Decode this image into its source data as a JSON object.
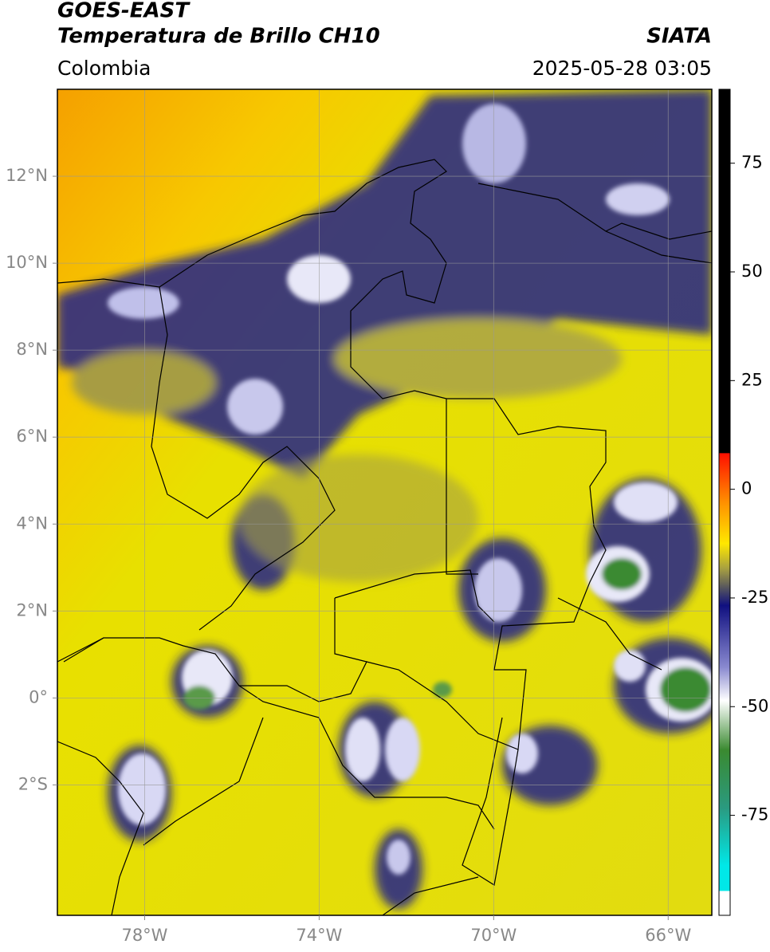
{
  "header": {
    "satellite": "GOES-EAST",
    "product": "Temperatura de Brillo CH10",
    "agency": "SIATA",
    "region": "Colombia",
    "datetime": "2025-05-28 03:05"
  },
  "map": {
    "xlim": [
      -80,
      -65
    ],
    "ylim": [
      -5,
      14
    ],
    "xticks": [
      {
        "value": -78,
        "label": "78°W"
      },
      {
        "value": -74,
        "label": "74°W"
      },
      {
        "value": -70,
        "label": "70°W"
      },
      {
        "value": -66,
        "label": "66°W"
      }
    ],
    "yticks": [
      {
        "value": 12,
        "label": "12°N"
      },
      {
        "value": 10,
        "label": "10°N"
      },
      {
        "value": 8,
        "label": "8°N"
      },
      {
        "value": 6,
        "label": "6°N"
      },
      {
        "value": 4,
        "label": "4°N"
      },
      {
        "value": 2,
        "label": "2°N"
      },
      {
        "value": 0,
        "label": "0°"
      },
      {
        "value": -2,
        "label": "2°S"
      }
    ],
    "grid": true
  },
  "colorbar": {
    "clim": [
      -98,
      92
    ],
    "ticks": [
      75,
      50,
      25,
      0,
      -25,
      -50,
      -75
    ]
  }
}
